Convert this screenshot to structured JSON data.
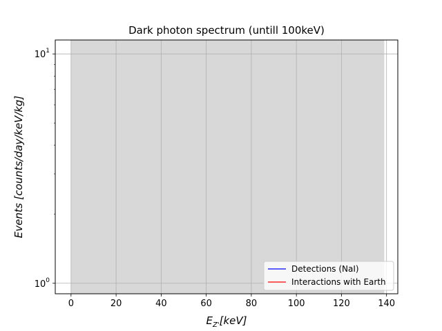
{
  "chart_data": {
    "type": "area",
    "title": "Dark photon spectrum (untill 100keV)",
    "xlabel": "E_{Z'}[keV]",
    "ylabel": "Events [counts/day/keV/kg]",
    "xlim": [
      -7,
      145
    ],
    "ylim": [
      0.9,
      11.5
    ],
    "yscale": "log",
    "grid": true,
    "legend_position": "lower-right",
    "x_ticks": [
      0,
      20,
      40,
      60,
      80,
      100,
      120,
      140
    ],
    "x_tick_labels": [
      "0",
      "20",
      "40",
      "60",
      "80",
      "100",
      "120",
      "140"
    ],
    "y_ticks": [
      1,
      10
    ],
    "y_tick_base": "10",
    "y_tick_exponents": [
      "0",
      "1"
    ],
    "shaded_region": {
      "x_start": 0,
      "x_end": 139,
      "color": "#d8d8d8"
    },
    "series": [
      {
        "name": "Detections (NaI)",
        "color": "#0000ff",
        "x": [],
        "y": []
      },
      {
        "name": "Interactions with Earth",
        "color": "#ff0000",
        "x": [],
        "y": []
      }
    ]
  }
}
